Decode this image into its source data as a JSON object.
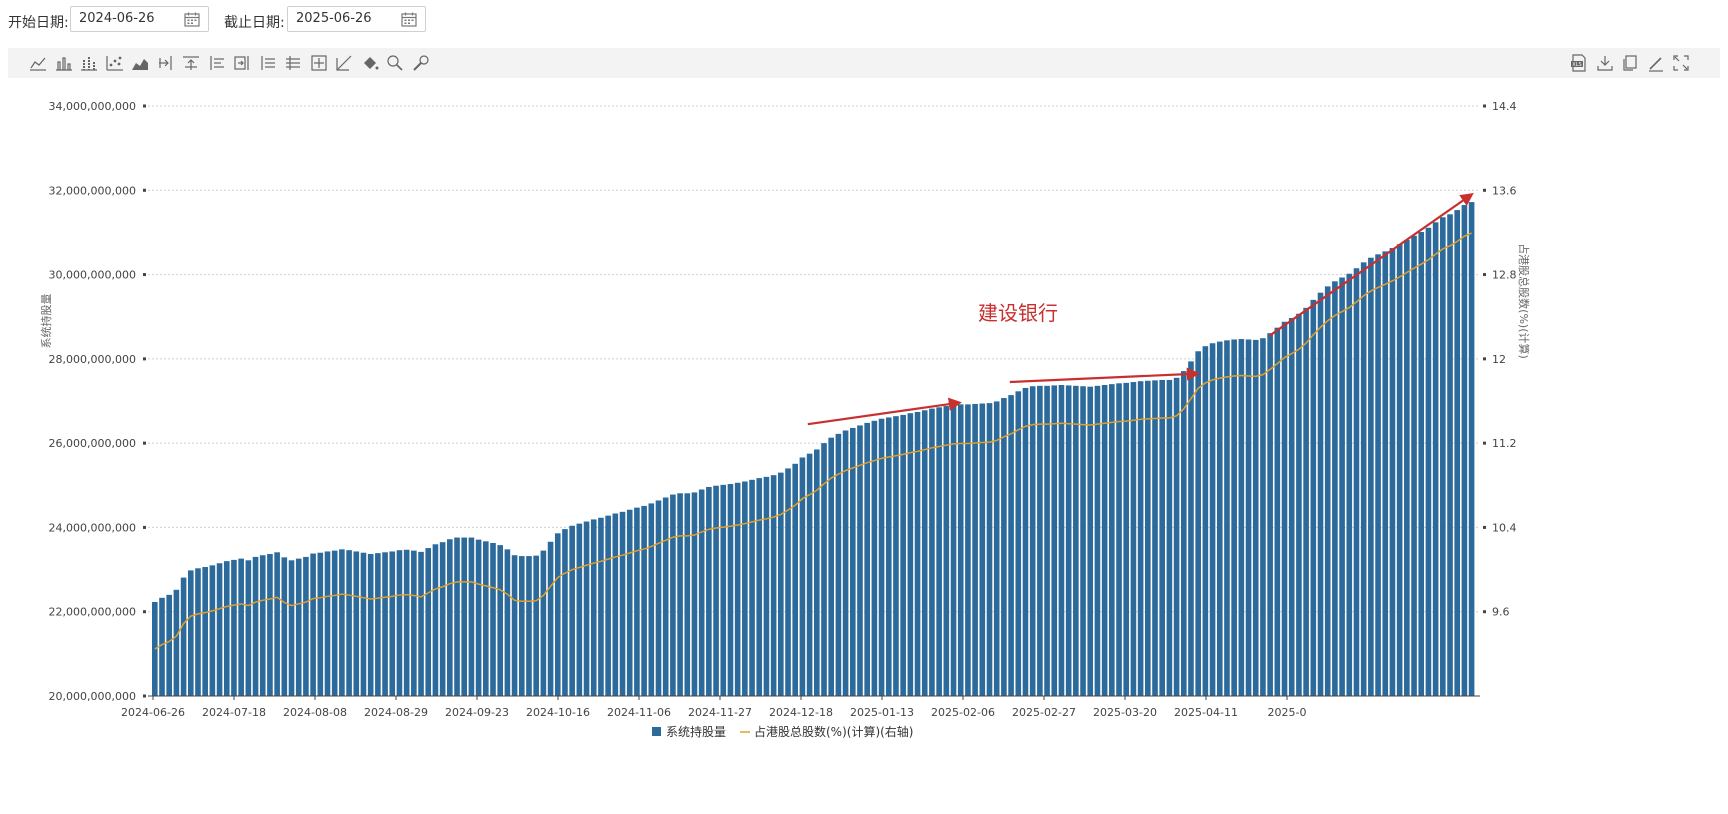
{
  "filters": {
    "start_label": "开始日期:",
    "start_value": "2024-06-26",
    "end_label": "截止日期:",
    "end_value": "2025-06-26"
  },
  "toolbar": {
    "left_icons": [
      "line-chart-icon",
      "bar-chart-icon",
      "stacked-bar-icon",
      "scatter-icon",
      "area-chart-icon",
      "export-range-icon",
      "align-top-icon",
      "align-left-icon",
      "align-right-icon",
      "list-left-icon",
      "list-center-icon",
      "zoom-frame-icon",
      "trend-icon",
      "fill-bucket-icon",
      "search-zoom-icon",
      "wrench-icon"
    ],
    "right_icons": [
      "xls-export-icon",
      "download-icon",
      "copy-icon",
      "edit-icon",
      "fullscreen-icon"
    ]
  },
  "chart_data": {
    "type": "bar+line",
    "title": "",
    "y_left": {
      "label": "系统持股量",
      "min": 20000000000,
      "max": 34000000000,
      "ticks": [
        "34,000,000,000",
        "32,000,000,000",
        "30,000,000,000",
        "28,000,000,000",
        "26,000,000,000",
        "24,000,000,000",
        "22,000,000,000",
        "20,000,000,000"
      ]
    },
    "y_right": {
      "label": "占港股总股数(%)(计算)",
      "min": 8.8,
      "max": 14.4,
      "ticks": [
        "14.4",
        "13.6",
        "12.8",
        "12",
        "11.2",
        "10.4",
        "9.6"
      ]
    },
    "x_ticks": [
      "2024-06-26",
      "2024-07-18",
      "2024-08-08",
      "2024-08-29",
      "2024-09-23",
      "2024-10-16",
      "2024-11-06",
      "2024-11-27",
      "2024-12-18",
      "2025-01-13",
      "2025-02-06",
      "2025-02-27",
      "2025-03-20",
      "2025-04-11",
      "2025-0"
    ],
    "grid": true,
    "legend_position": "bottom-center",
    "series": [
      {
        "name": "系统持股量",
        "type": "bar",
        "color": "#2b6a9b",
        "axis": "left"
      },
      {
        "name": "占港股总股数(%)(计算)(右轴)",
        "type": "line",
        "color": "#e0a030",
        "axis": "right"
      }
    ],
    "bar_values": [
      22.23,
      22.33,
      22.4,
      22.52,
      22.81,
      22.98,
      23.03,
      23.06,
      23.1,
      23.15,
      23.2,
      23.23,
      23.26,
      23.22,
      23.3,
      23.34,
      23.37,
      23.41,
      23.29,
      23.22,
      23.26,
      23.3,
      23.38,
      23.4,
      23.43,
      23.45,
      23.48,
      23.46,
      23.43,
      23.4,
      23.37,
      23.39,
      23.41,
      23.43,
      23.46,
      23.47,
      23.45,
      23.42,
      23.51,
      23.6,
      23.65,
      23.72,
      23.76,
      23.76,
      23.76,
      23.71,
      23.67,
      23.63,
      23.58,
      23.48,
      23.34,
      23.32,
      23.32,
      23.33,
      23.45,
      23.66,
      23.86,
      23.96,
      24.04,
      24.09,
      24.14,
      24.19,
      24.23,
      24.28,
      24.33,
      24.37,
      24.42,
      24.47,
      24.51,
      24.57,
      24.64,
      24.71,
      24.78,
      24.81,
      24.81,
      24.83,
      24.9,
      24.96,
      24.99,
      25.01,
      25.03,
      25.06,
      25.09,
      25.13,
      25.17,
      25.2,
      25.24,
      25.3,
      25.4,
      25.51,
      25.66,
      25.75,
      25.85,
      26.0,
      26.13,
      26.22,
      26.3,
      26.36,
      26.42,
      26.48,
      26.53,
      26.58,
      26.61,
      26.64,
      26.67,
      26.71,
      26.74,
      26.78,
      26.82,
      26.85,
      26.88,
      26.91,
      26.92,
      26.92,
      26.93,
      26.94,
      26.95,
      26.99,
      27.07,
      27.14,
      27.23,
      27.31,
      27.35,
      27.36,
      27.36,
      27.37,
      27.38,
      27.37,
      27.36,
      27.35,
      27.34,
      27.36,
      27.38,
      27.4,
      27.42,
      27.43,
      27.45,
      27.47,
      27.48,
      27.49,
      27.5,
      27.5,
      27.55,
      27.71,
      27.94,
      28.18,
      28.3,
      28.37,
      28.41,
      28.44,
      28.46,
      28.47,
      28.46,
      28.45,
      28.49,
      28.61,
      28.74,
      28.88,
      28.97,
      29.07,
      29.21,
      29.4,
      29.57,
      29.72,
      29.84,
      29.93,
      30.02,
      30.15,
      30.29,
      30.4,
      30.48,
      30.55,
      30.63,
      30.72,
      30.82,
      30.92,
      31.01,
      31.11,
      31.24,
      31.36,
      31.43,
      31.53,
      31.65,
      31.72
    ],
    "annotations": [
      {
        "type": "text",
        "text": "建设银行",
        "color": "#c83030"
      },
      {
        "type": "arrow",
        "color": "#c83030",
        "from": [
          "2024-12-24",
          26.45
        ],
        "to": [
          "2025-02-04",
          26.96
        ]
      },
      {
        "type": "arrow",
        "color": "#c83030",
        "from": [
          "2025-02-18",
          27.45
        ],
        "to": [
          "2025-04-11",
          27.65
        ]
      },
      {
        "type": "arrow",
        "color": "#c83030",
        "from": [
          "2025-05-01",
          28.55
        ],
        "to": [
          "2025-06-26",
          31.9
        ]
      }
    ]
  }
}
